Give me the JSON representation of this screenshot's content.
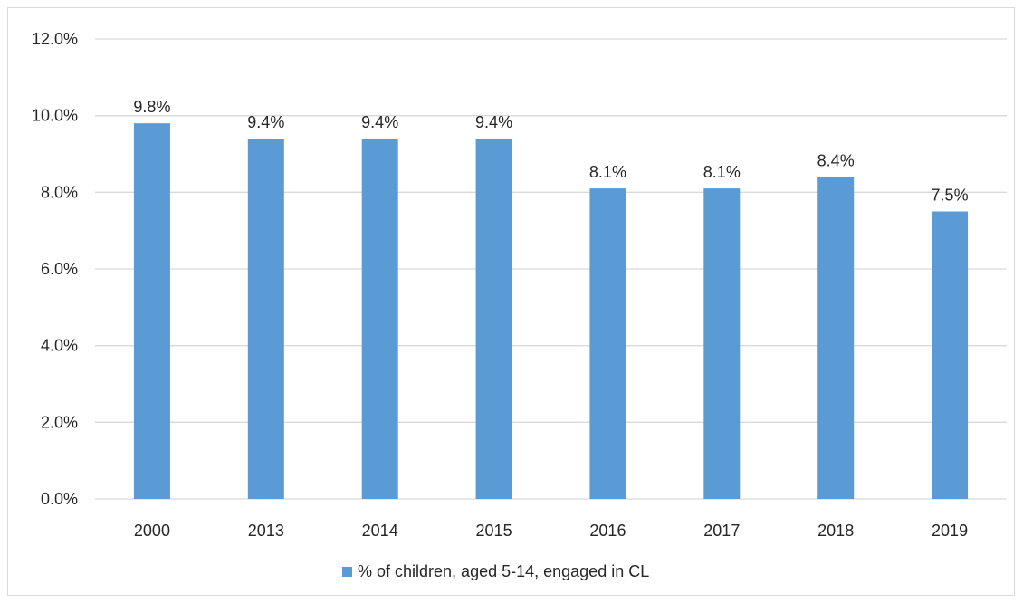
{
  "chart_data": {
    "type": "bar",
    "categories": [
      "2000",
      "2013",
      "2014",
      "2015",
      "2016",
      "2017",
      "2018",
      "2019"
    ],
    "series": [
      {
        "name": "% of children, aged 5-14, engaged in CL",
        "values": [
          9.8,
          9.4,
          9.4,
          9.4,
          8.1,
          8.1,
          8.4,
          7.5
        ],
        "color": "#5b9bd5"
      }
    ],
    "data_labels": [
      "9.8%",
      "9.4%",
      "9.4%",
      "9.4%",
      "8.1%",
      "8.1%",
      "8.4%",
      "7.5%"
    ],
    "y_ticks": [
      0,
      2,
      4,
      6,
      8,
      10,
      12
    ],
    "y_tick_labels": [
      "0.0%",
      "2.0%",
      "4.0%",
      "6.0%",
      "8.0%",
      "10.0%",
      "12.0%"
    ],
    "ylim": [
      0,
      12
    ],
    "grid": true,
    "legend_position": "bottom",
    "gridline_color": "#d9d9d9"
  }
}
